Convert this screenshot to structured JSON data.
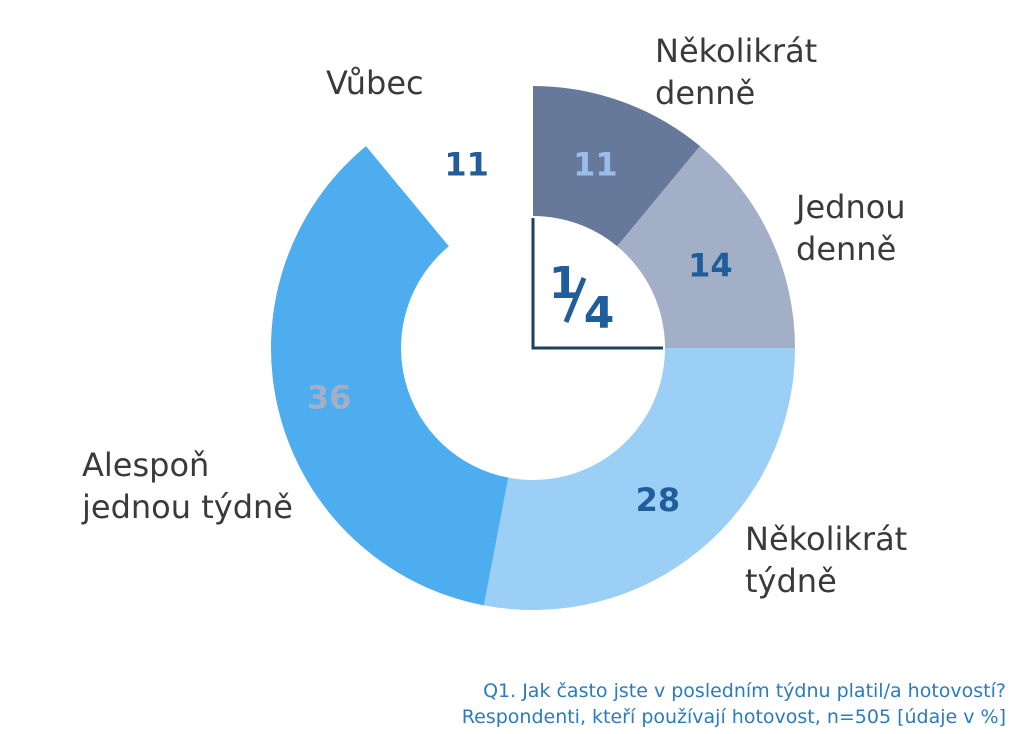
{
  "chart_data": {
    "type": "pie",
    "variant": "donut",
    "categories": [
      "Několikrát denně",
      "Jednou denně",
      "Několikrát týdně",
      "Alespoň jednou týdně",
      "Vůbec"
    ],
    "values": [
      11,
      14,
      28,
      36,
      11
    ],
    "value_labels": [
      "11",
      "14",
      "28",
      "36",
      "11"
    ],
    "label_lines": [
      [
        "Několikrát",
        "denně"
      ],
      [
        "Jednou",
        "denně"
      ],
      [
        "Několikrát",
        "týdně"
      ],
      [
        "Alespoň",
        "jednou týdně"
      ],
      [
        "Vůbec"
      ]
    ],
    "colors": [
      "#66799a",
      "#a3afc6",
      "#9bcff5",
      "#4dadee",
      null
    ],
    "value_label_colors": [
      "#9bbce8",
      "#1f5e9b",
      "#1f5e9b",
      "#a3afc6",
      "#1f5e9b"
    ],
    "center_annotation": {
      "numerator": "1",
      "denominator": "4"
    },
    "unit": "%"
  },
  "notes": {
    "question": "Q1. Jak často jste v posledním týdnu platil/a hotovostí?",
    "base": "Respondenti, kteří používají hotovost, n=505 [údaje v %]"
  }
}
